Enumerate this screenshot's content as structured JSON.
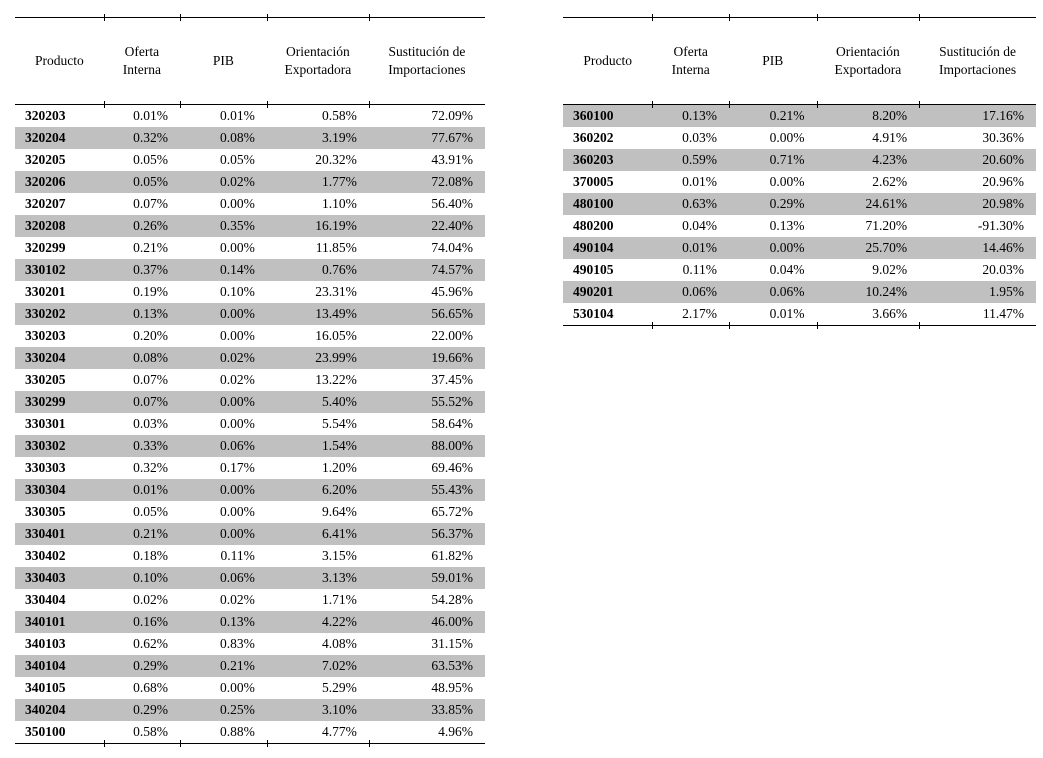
{
  "colors": {
    "stripe": "#c0c0c0",
    "rule": "#000000",
    "text": "#000000",
    "background": "#ffffff"
  },
  "tables": [
    {
      "id": "left",
      "columns": [
        "Producto",
        "Oferta Interna",
        "PIB",
        "Orientación Exportadora",
        "Sustitución de Importaciones"
      ],
      "first_row_shaded": false,
      "rows": [
        [
          "320203",
          "0.01%",
          "0.01%",
          "0.58%",
          "72.09%"
        ],
        [
          "320204",
          "0.32%",
          "0.08%",
          "3.19%",
          "77.67%"
        ],
        [
          "320205",
          "0.05%",
          "0.05%",
          "20.32%",
          "43.91%"
        ],
        [
          "320206",
          "0.05%",
          "0.02%",
          "1.77%",
          "72.08%"
        ],
        [
          "320207",
          "0.07%",
          "0.00%",
          "1.10%",
          "56.40%"
        ],
        [
          "320208",
          "0.26%",
          "0.35%",
          "16.19%",
          "22.40%"
        ],
        [
          "320299",
          "0.21%",
          "0.00%",
          "11.85%",
          "74.04%"
        ],
        [
          "330102",
          "0.37%",
          "0.14%",
          "0.76%",
          "74.57%"
        ],
        [
          "330201",
          "0.19%",
          "0.10%",
          "23.31%",
          "45.96%"
        ],
        [
          "330202",
          "0.13%",
          "0.00%",
          "13.49%",
          "56.65%"
        ],
        [
          "330203",
          "0.20%",
          "0.00%",
          "16.05%",
          "22.00%"
        ],
        [
          "330204",
          "0.08%",
          "0.02%",
          "23.99%",
          "19.66%"
        ],
        [
          "330205",
          "0.07%",
          "0.02%",
          "13.22%",
          "37.45%"
        ],
        [
          "330299",
          "0.07%",
          "0.00%",
          "5.40%",
          "55.52%"
        ],
        [
          "330301",
          "0.03%",
          "0.00%",
          "5.54%",
          "58.64%"
        ],
        [
          "330302",
          "0.33%",
          "0.06%",
          "1.54%",
          "88.00%"
        ],
        [
          "330303",
          "0.32%",
          "0.17%",
          "1.20%",
          "69.46%"
        ],
        [
          "330304",
          "0.01%",
          "0.00%",
          "6.20%",
          "55.43%"
        ],
        [
          "330305",
          "0.05%",
          "0.00%",
          "9.64%",
          "65.72%"
        ],
        [
          "330401",
          "0.21%",
          "0.00%",
          "6.41%",
          "56.37%"
        ],
        [
          "330402",
          "0.18%",
          "0.11%",
          "3.15%",
          "61.82%"
        ],
        [
          "330403",
          "0.10%",
          "0.06%",
          "3.13%",
          "59.01%"
        ],
        [
          "330404",
          "0.02%",
          "0.02%",
          "1.71%",
          "54.28%"
        ],
        [
          "340101",
          "0.16%",
          "0.13%",
          "4.22%",
          "46.00%"
        ],
        [
          "340103",
          "0.62%",
          "0.83%",
          "4.08%",
          "31.15%"
        ],
        [
          "340104",
          "0.29%",
          "0.21%",
          "7.02%",
          "63.53%"
        ],
        [
          "340105",
          "0.68%",
          "0.00%",
          "5.29%",
          "48.95%"
        ],
        [
          "340204",
          "0.29%",
          "0.25%",
          "3.10%",
          "33.85%"
        ],
        [
          "350100",
          "0.58%",
          "0.88%",
          "4.77%",
          "4.96%"
        ]
      ]
    },
    {
      "id": "right",
      "columns": [
        "Producto",
        "Oferta Interna",
        "PIB",
        "Orientación Exportadora",
        "Sustitución de Importaciones"
      ],
      "first_row_shaded": true,
      "rows": [
        [
          "360100",
          "0.13%",
          "0.21%",
          "8.20%",
          "17.16%"
        ],
        [
          "360202",
          "0.03%",
          "0.00%",
          "4.91%",
          "30.36%"
        ],
        [
          "360203",
          "0.59%",
          "0.71%",
          "4.23%",
          "20.60%"
        ],
        [
          "370005",
          "0.01%",
          "0.00%",
          "2.62%",
          "20.96%"
        ],
        [
          "480100",
          "0.63%",
          "0.29%",
          "24.61%",
          "20.98%"
        ],
        [
          "480200",
          "0.04%",
          "0.13%",
          "71.20%",
          "-91.30%"
        ],
        [
          "490104",
          "0.01%",
          "0.00%",
          "25.70%",
          "14.46%"
        ],
        [
          "490105",
          "0.11%",
          "0.04%",
          "9.02%",
          "20.03%"
        ],
        [
          "490201",
          "0.06%",
          "0.06%",
          "10.24%",
          "1.95%"
        ],
        [
          "530104",
          "2.17%",
          "0.01%",
          "3.66%",
          "11.47%"
        ]
      ]
    }
  ]
}
